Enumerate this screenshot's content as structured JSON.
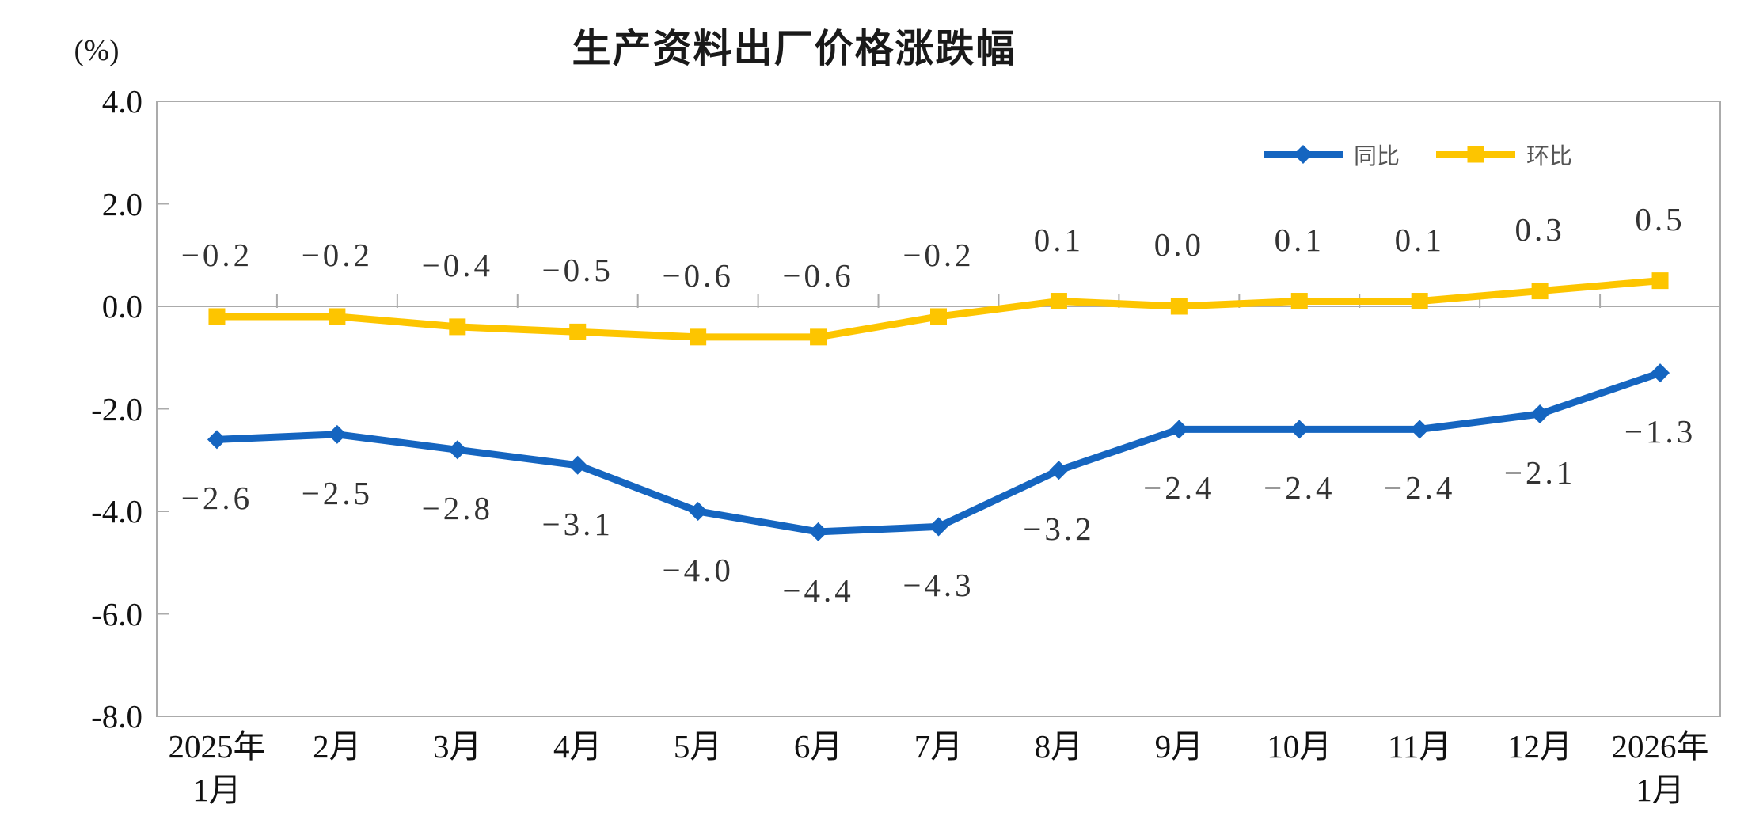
{
  "title": "生产资料出厂价格涨跌幅",
  "y_axis_unit": "(%)",
  "legend": {
    "position": "top-right",
    "items": [
      {
        "label": "同比"
      },
      {
        "label": "环比"
      }
    ]
  },
  "chart_data": {
    "type": "line",
    "title": "生产资料出厂价格涨跌幅",
    "xlabel": "",
    "ylabel": "(%)",
    "ylim": [
      -8.0,
      4.0
    ],
    "ytick_step": 2.0,
    "grid": false,
    "legend_position": "top-right",
    "axis_color": "#ababab",
    "label_color": "#333333",
    "categories": [
      "2025年1月",
      "2月",
      "3月",
      "4月",
      "5月",
      "6月",
      "7月",
      "8月",
      "9月",
      "10月",
      "11月",
      "12月",
      "2026年1月"
    ],
    "category_lines": [
      [
        "2025年",
        "1月"
      ],
      [
        "2月"
      ],
      [
        "3月"
      ],
      [
        "4月"
      ],
      [
        "5月"
      ],
      [
        "6月"
      ],
      [
        "7月"
      ],
      [
        "8月"
      ],
      [
        "9月"
      ],
      [
        "10月"
      ],
      [
        "11月"
      ],
      [
        "12月"
      ],
      [
        "2026年",
        "1月"
      ]
    ],
    "ytick_values": [
      4,
      2,
      0,
      -2,
      -4,
      -6,
      -8
    ],
    "ytick_labels": [
      "4.0",
      "2.0",
      "0.0",
      "-2.0",
      "-4.0",
      "-6.0",
      "-8.0"
    ],
    "series": [
      {
        "name": "同比",
        "color": "#1565c0",
        "marker": "diamond",
        "label_position": "below",
        "values": [
          -2.6,
          -2.5,
          -2.8,
          -3.1,
          -4.0,
          -4.4,
          -4.3,
          -3.2,
          -2.4,
          -2.4,
          -2.4,
          -2.1,
          -1.3
        ],
        "labels": [
          "−2.6",
          "−2.5",
          "−2.8",
          "−3.1",
          "−4.0",
          "−4.4",
          "−4.3",
          "−3.2",
          "−2.4",
          "−2.4",
          "−2.4",
          "−2.1",
          "−1.3"
        ]
      },
      {
        "name": "环比",
        "color": "#fdc500",
        "marker": "square",
        "label_position": "above",
        "values": [
          -0.2,
          -0.2,
          -0.4,
          -0.5,
          -0.6,
          -0.6,
          -0.2,
          0.1,
          0.0,
          0.1,
          0.1,
          0.3,
          0.5
        ],
        "labels": [
          "−0.2",
          "−0.2",
          "−0.4",
          "−0.5",
          "−0.6",
          "−0.6",
          "−0.2",
          "0.1",
          "0.0",
          "0.1",
          "0.1",
          "0.3",
          "0.5"
        ]
      }
    ]
  }
}
